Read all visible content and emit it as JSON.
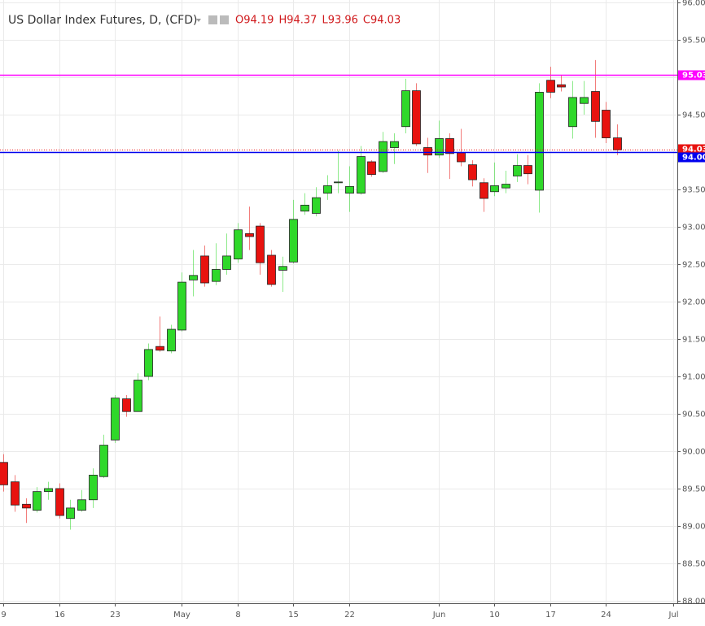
{
  "chart_data": {
    "type": "candlestick",
    "title": "US Dollar Index Futures, D, (CFD)",
    "ohlc_labels": [
      "O94.19",
      "H94.37",
      "L93.96",
      "C94.03"
    ],
    "up_color": "#2fd82a",
    "down_color": "#e8120f",
    "open": [
      89.85,
      89.59,
      89.29,
      89.21,
      89.46,
      89.5,
      89.1,
      89.21,
      89.35,
      89.66,
      90.15,
      90.7,
      90.53,
      91.0,
      91.4,
      91.34,
      91.62,
      92.29,
      92.61,
      92.27,
      92.43,
      92.57,
      92.91,
      93.01,
      92.62,
      92.42,
      92.53,
      93.21,
      93.18,
      93.45,
      93.59,
      93.45,
      93.45,
      93.87,
      93.74,
      94.06,
      94.34,
      94.82,
      94.06,
      93.96,
      94.18,
      93.99,
      93.83,
      93.59,
      93.47,
      93.52,
      93.68,
      93.82,
      93.49,
      94.96,
      94.9,
      94.34,
      94.65,
      94.81,
      94.56,
      94.19
    ],
    "high": [
      89.96,
      89.68,
      89.37,
      89.52,
      89.59,
      89.57,
      89.35,
      89.48,
      89.77,
      90.22,
      90.75,
      90.75,
      91.04,
      91.44,
      91.8,
      91.69,
      92.39,
      92.69,
      92.75,
      92.78,
      92.91,
      93.05,
      93.27,
      93.05,
      92.69,
      92.6,
      93.36,
      93.45,
      93.53,
      93.69,
      94.02,
      93.81,
      94.08,
      93.89,
      94.27,
      94.25,
      94.98,
      94.92,
      94.19,
      94.42,
      94.25,
      94.31,
      93.89,
      93.65,
      93.86,
      93.75,
      93.97,
      93.96,
      94.92,
      95.14,
      95.03,
      94.95,
      94.95,
      95.23,
      94.67,
      94.37
    ],
    "low": [
      89.46,
      89.19,
      89.04,
      89.18,
      89.35,
      89.1,
      88.95,
      89.19,
      89.24,
      89.64,
      90.11,
      90.46,
      90.53,
      90.95,
      91.33,
      91.31,
      91.6,
      92.07,
      92.2,
      92.22,
      92.36,
      92.52,
      92.69,
      92.36,
      92.2,
      92.13,
      92.51,
      93.16,
      93.14,
      93.36,
      93.45,
      93.2,
      93.43,
      93.67,
      93.72,
      93.84,
      94.25,
      94.08,
      93.72,
      93.92,
      93.64,
      93.81,
      93.54,
      93.2,
      93.41,
      93.45,
      93.6,
      93.57,
      93.19,
      94.72,
      94.81,
      94.18,
      94.5,
      94.19,
      94.12,
      93.96
    ],
    "close": [
      89.55,
      89.28,
      89.24,
      89.46,
      89.5,
      89.14,
      89.24,
      89.35,
      89.68,
      90.08,
      90.71,
      90.53,
      90.95,
      91.36,
      91.35,
      91.63,
      92.26,
      92.35,
      92.25,
      92.43,
      92.61,
      92.96,
      92.87,
      92.52,
      92.23,
      92.47,
      93.1,
      93.29,
      93.39,
      93.55,
      93.6,
      93.54,
      93.94,
      93.7,
      94.14,
      94.14,
      94.82,
      94.11,
      93.96,
      94.18,
      93.98,
      93.87,
      93.63,
      93.38,
      93.55,
      93.57,
      93.82,
      93.71,
      94.8,
      94.8,
      94.87,
      94.73,
      94.73,
      94.41,
      94.19,
      94.03
    ],
    "xlim": [
      -0.3,
      60.4
    ],
    "xticks": [
      {
        "value": 0,
        "label": "9"
      },
      {
        "value": 5,
        "label": "16"
      },
      {
        "value": 10,
        "label": "23"
      },
      {
        "value": 16,
        "label": "May"
      },
      {
        "value": 21,
        "label": "8"
      },
      {
        "value": 26,
        "label": "15"
      },
      {
        "value": 31,
        "label": "22"
      },
      {
        "value": 39,
        "label": "Jun"
      },
      {
        "value": 44,
        "label": "10"
      },
      {
        "value": 49,
        "label": "17"
      },
      {
        "value": 54,
        "label": "24"
      },
      {
        "value": 60,
        "label": "Jul"
      }
    ],
    "ylim": [
      96.0333,
      87.9667
    ],
    "yticks": [
      {
        "value": 88,
        "label": "88.00"
      },
      {
        "value": 88.5,
        "label": "88.50"
      },
      {
        "value": 89,
        "label": "89.00"
      },
      {
        "value": 89.5,
        "label": "89.50"
      },
      {
        "value": 90,
        "label": "90.00"
      },
      {
        "value": 90.5,
        "label": "90.50"
      },
      {
        "value": 91,
        "label": "91.00"
      },
      {
        "value": 91.5,
        "label": "91.50"
      },
      {
        "value": 92,
        "label": "92.00"
      },
      {
        "value": 92.5,
        "label": "92.50"
      },
      {
        "value": 93,
        "label": "93.00"
      },
      {
        "value": 93.5,
        "label": "93.50"
      },
      {
        "value": 94,
        "label": "94.00"
      },
      {
        "value": 94.5,
        "label": "94.50"
      },
      {
        "value": 95,
        "label": "95.00"
      },
      {
        "value": 95.5,
        "label": "95.50"
      },
      {
        "value": 96,
        "label": "96.00"
      }
    ],
    "grid": true,
    "hlines": [
      {
        "value": 95.03,
        "label": "95.03",
        "color": "#ff00ff",
        "style": "solid"
      },
      {
        "value": 94.03,
        "label": "94.03",
        "color": "#e8120f",
        "style": "dotted"
      },
      {
        "value": 94,
        "label": "94.00",
        "color": "#0000ee",
        "style": "solid"
      }
    ]
  }
}
